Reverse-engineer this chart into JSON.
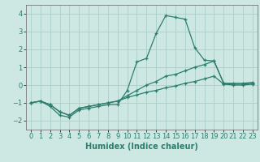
{
  "x": [
    0,
    1,
    2,
    3,
    4,
    5,
    6,
    7,
    8,
    9,
    10,
    11,
    12,
    13,
    14,
    15,
    16,
    17,
    18,
    19,
    20,
    21,
    22,
    23
  ],
  "line1_y": [
    -1.0,
    -0.9,
    -1.2,
    -1.7,
    -1.8,
    -1.4,
    -1.3,
    -1.2,
    -1.1,
    -1.1,
    -0.3,
    1.3,
    1.5,
    2.9,
    3.9,
    3.8,
    3.7,
    2.1,
    1.4,
    1.35,
    0.1,
    0.1,
    0.1,
    0.15
  ],
  "line2_y": [
    -1.0,
    -0.9,
    -1.1,
    -1.5,
    -1.7,
    -1.3,
    -1.2,
    -1.1,
    -1.0,
    -0.9,
    -0.6,
    -0.3,
    0.0,
    0.2,
    0.5,
    0.6,
    0.8,
    1.0,
    1.15,
    1.35,
    0.1,
    0.05,
    0.05,
    0.1
  ],
  "line3_y": [
    -1.0,
    -0.9,
    -1.1,
    -1.5,
    -1.7,
    -1.3,
    -1.2,
    -1.1,
    -1.0,
    -0.9,
    -0.7,
    -0.55,
    -0.4,
    -0.3,
    -0.15,
    -0.05,
    0.1,
    0.2,
    0.35,
    0.5,
    0.05,
    0.0,
    0.0,
    0.05
  ],
  "line_color": "#2d7d6e",
  "bg_color": "#cde8e2",
  "grid_color": "#aacfc8",
  "xlabel": "Humidex (Indice chaleur)",
  "ylim": [
    -2.5,
    4.5
  ],
  "xlim": [
    -0.5,
    23.5
  ],
  "yticks": [
    -2,
    -1,
    0,
    1,
    2,
    3,
    4
  ]
}
